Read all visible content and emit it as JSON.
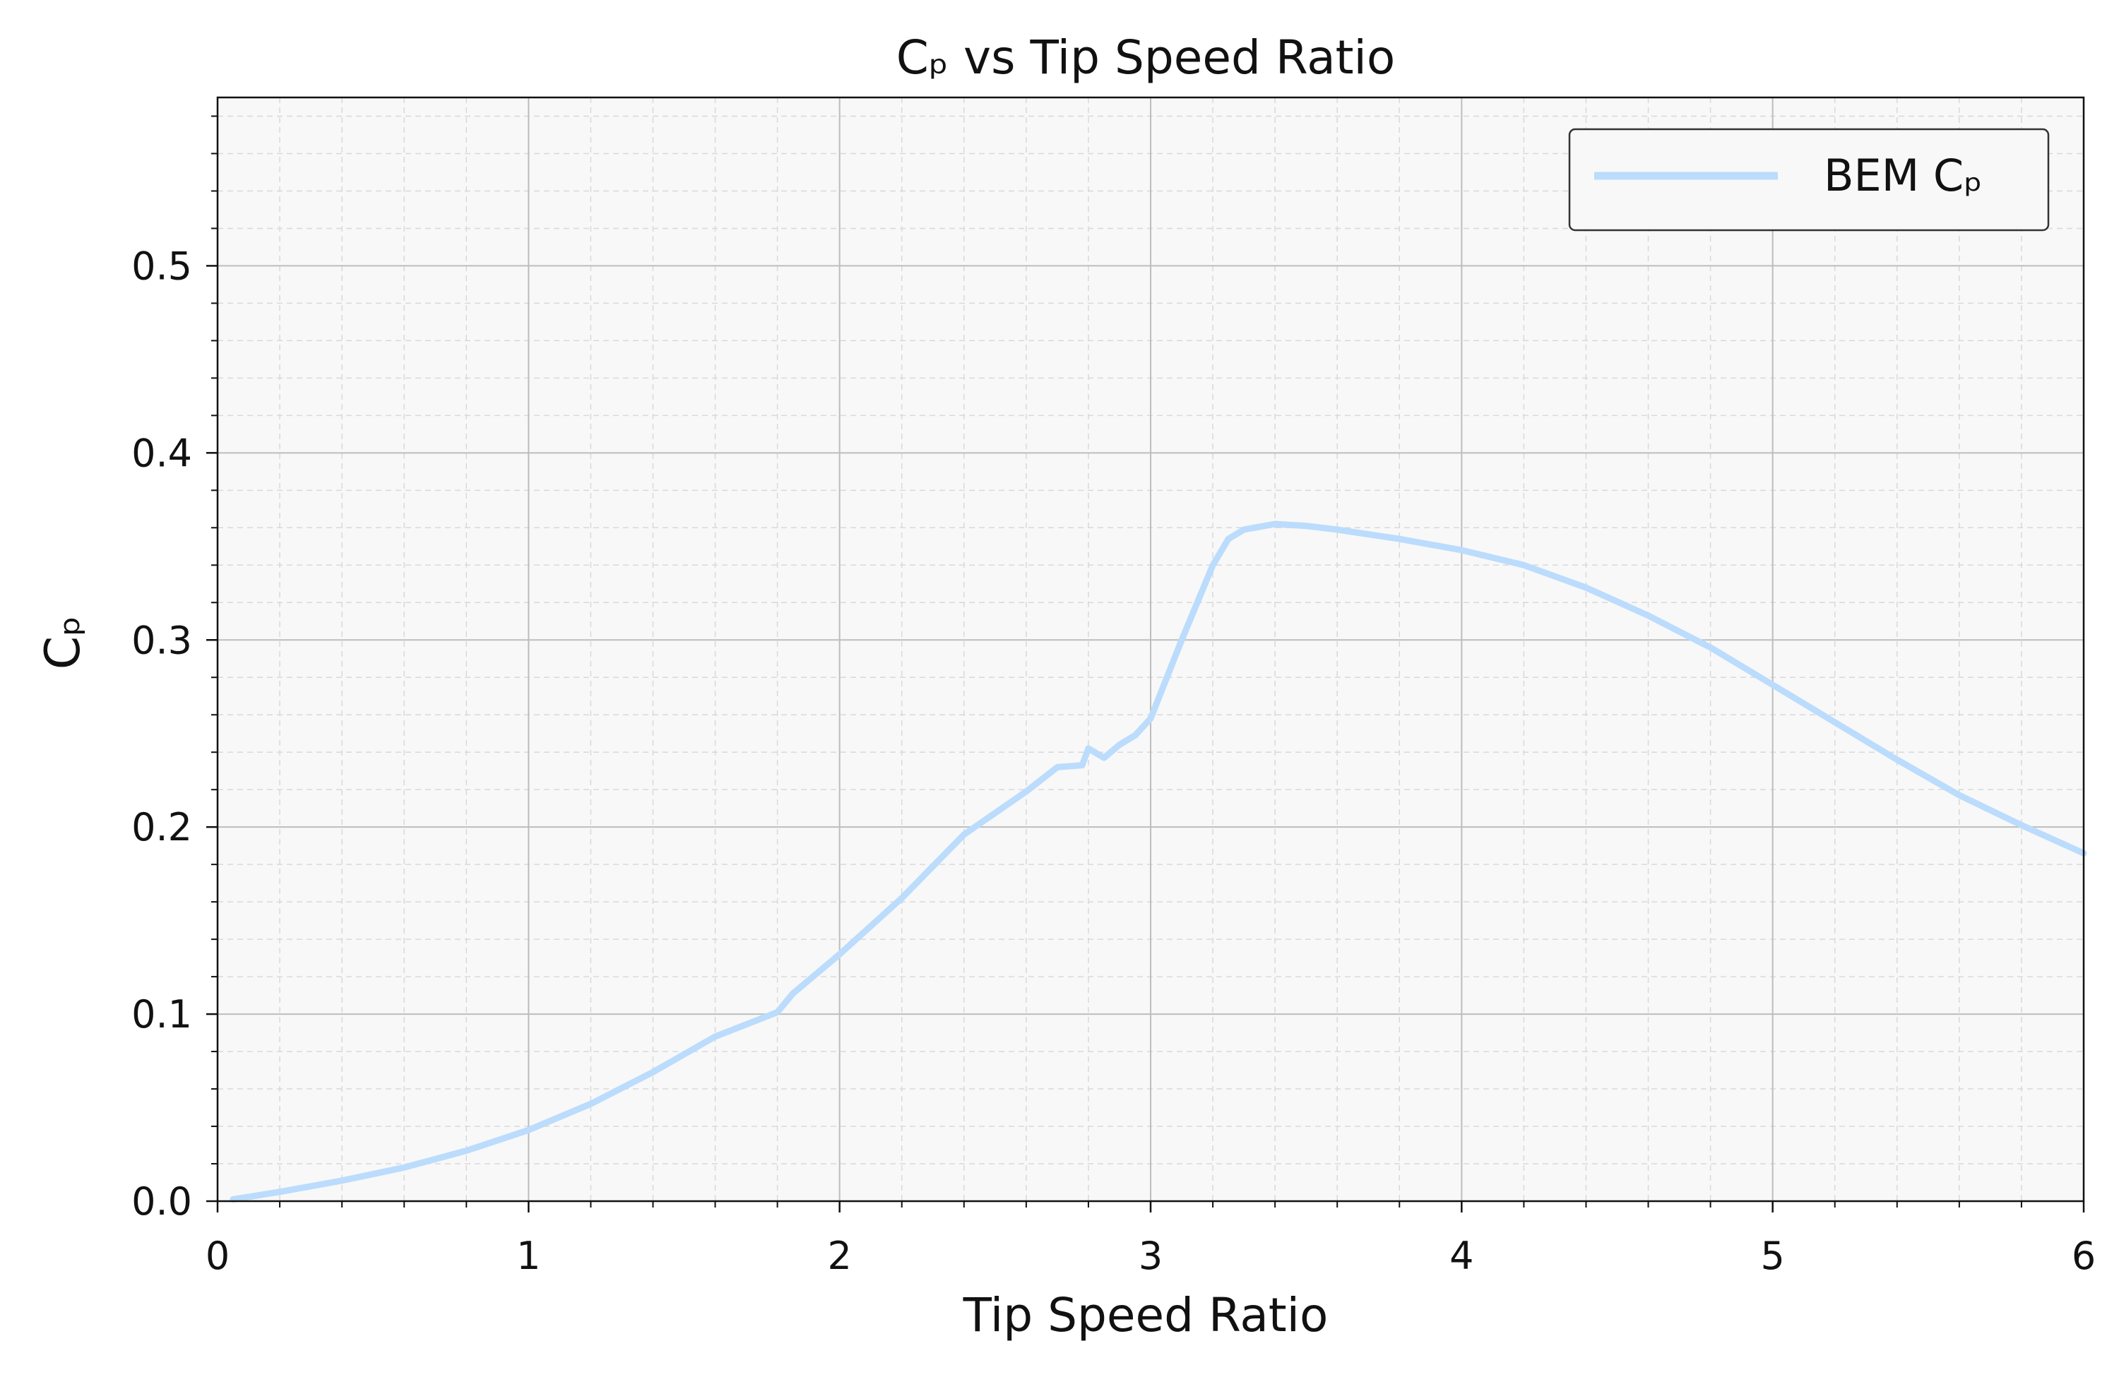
{
  "chart_data": {
    "type": "line",
    "title": "Cₚ vs Tip Speed Ratio",
    "xlabel": "Tip Speed Ratio",
    "ylabel": "Cₚ",
    "xlim": [
      0,
      6
    ],
    "ylim": [
      0,
      0.59
    ],
    "xticks": [
      0,
      1,
      2,
      3,
      4,
      5,
      6
    ],
    "xtick_labels": [
      "0",
      "1",
      "2",
      "3",
      "4",
      "5",
      "6"
    ],
    "yticks": [
      0.0,
      0.1,
      0.2,
      0.3,
      0.4,
      0.5
    ],
    "ytick_labels": [
      "0.0",
      "0.1",
      "0.2",
      "0.3",
      "0.4",
      "0.5"
    ],
    "grid": true,
    "legend_position": "top-right",
    "series": [
      {
        "name": "BEM Cₚ",
        "color": "#bbdcfc",
        "x": [
          0.05,
          0.2,
          0.4,
          0.6,
          0.8,
          1.0,
          1.2,
          1.4,
          1.6,
          1.8,
          1.85,
          2.0,
          2.2,
          2.4,
          2.6,
          2.7,
          2.78,
          2.8,
          2.85,
          2.9,
          2.95,
          3.0,
          3.1,
          3.2,
          3.25,
          3.3,
          3.4,
          3.5,
          3.6,
          3.8,
          4.0,
          4.2,
          4.4,
          4.6,
          4.8,
          5.0,
          5.2,
          5.4,
          5.6,
          5.8,
          6.0
        ],
        "y": [
          0.001,
          0.005,
          0.011,
          0.018,
          0.027,
          0.038,
          0.052,
          0.069,
          0.088,
          0.101,
          0.111,
          0.132,
          0.162,
          0.196,
          0.219,
          0.232,
          0.233,
          0.242,
          0.237,
          0.244,
          0.249,
          0.258,
          0.3,
          0.34,
          0.354,
          0.359,
          0.362,
          0.361,
          0.359,
          0.354,
          0.348,
          0.34,
          0.328,
          0.313,
          0.296,
          0.276,
          0.256,
          0.236,
          0.217,
          0.201,
          0.186
        ]
      }
    ]
  }
}
